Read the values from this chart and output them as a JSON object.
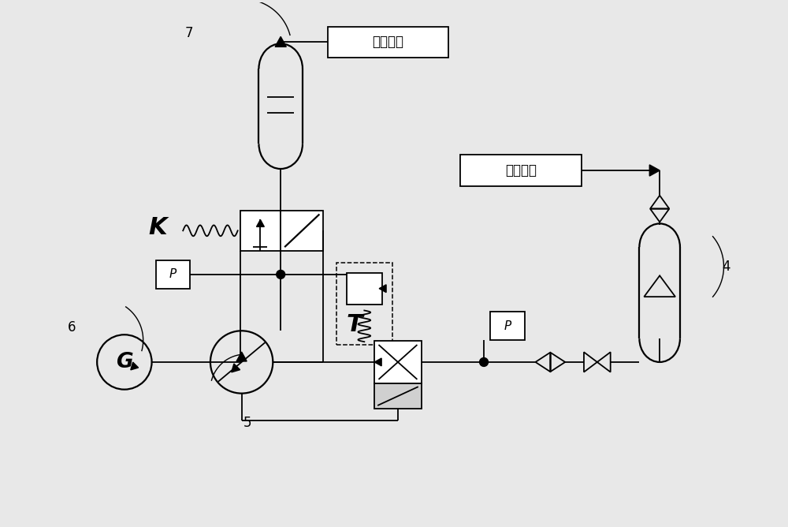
{
  "bg_color": "#e8e8e8",
  "labels": {
    "low_pressure": "低压油路",
    "high_pressure": "高压油路",
    "K": "K",
    "T": "T",
    "G": "G",
    "P": "P",
    "num4": "4",
    "num5": "5",
    "num6": "6",
    "num7": "7"
  },
  "lw": 1.3
}
